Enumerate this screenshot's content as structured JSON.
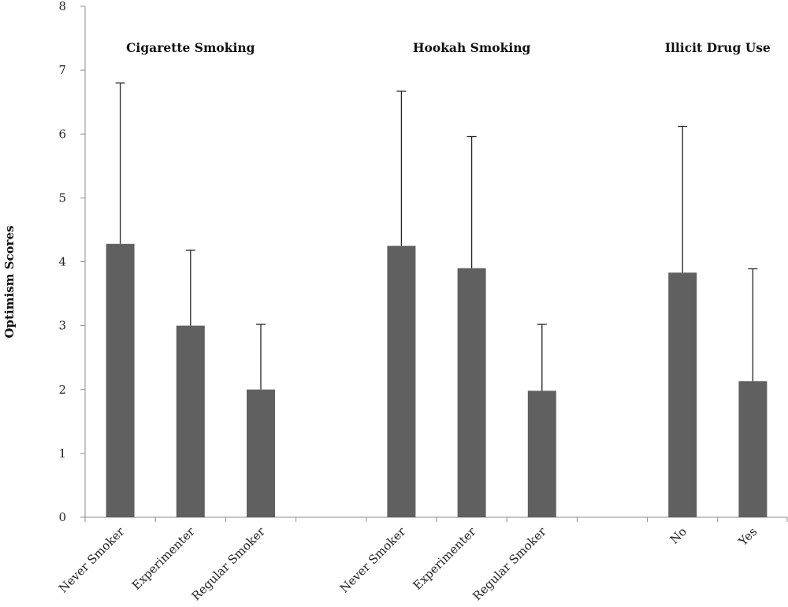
{
  "chart_data": {
    "type": "bar",
    "ylabel": "Optimism Scores",
    "xlabel": "",
    "ylim": [
      0,
      8
    ],
    "yticks": [
      0,
      1,
      2,
      3,
      4,
      5,
      6,
      7,
      8
    ],
    "grid": false,
    "legend": "none",
    "bar_color": "#606060",
    "slots": 10,
    "groups": [
      {
        "title": "Cigarette Smoking",
        "bars": [
          {
            "category": "Never Smoker",
            "slot": 0,
            "value": 4.28,
            "error": 2.52
          },
          {
            "category": "Experimenter",
            "slot": 1,
            "value": 3.0,
            "error": 1.18
          },
          {
            "category": "Regular Smoker",
            "slot": 2,
            "value": 2.0,
            "error": 1.02
          }
        ]
      },
      {
        "title": "Hookah Smoking",
        "bars": [
          {
            "category": "Never Smoker",
            "slot": 4,
            "value": 4.25,
            "error": 2.42
          },
          {
            "category": "Experimenter",
            "slot": 5,
            "value": 3.9,
            "error": 2.06
          },
          {
            "category": "Regular Smoker",
            "slot": 6,
            "value": 1.98,
            "error": 1.04
          }
        ]
      },
      {
        "title": "Illicit Drug Use",
        "bars": [
          {
            "category": "No",
            "slot": 8,
            "value": 3.83,
            "error": 2.29
          },
          {
            "category": "Yes",
            "slot": 9,
            "value": 2.13,
            "error": 1.76
          }
        ]
      }
    ]
  }
}
